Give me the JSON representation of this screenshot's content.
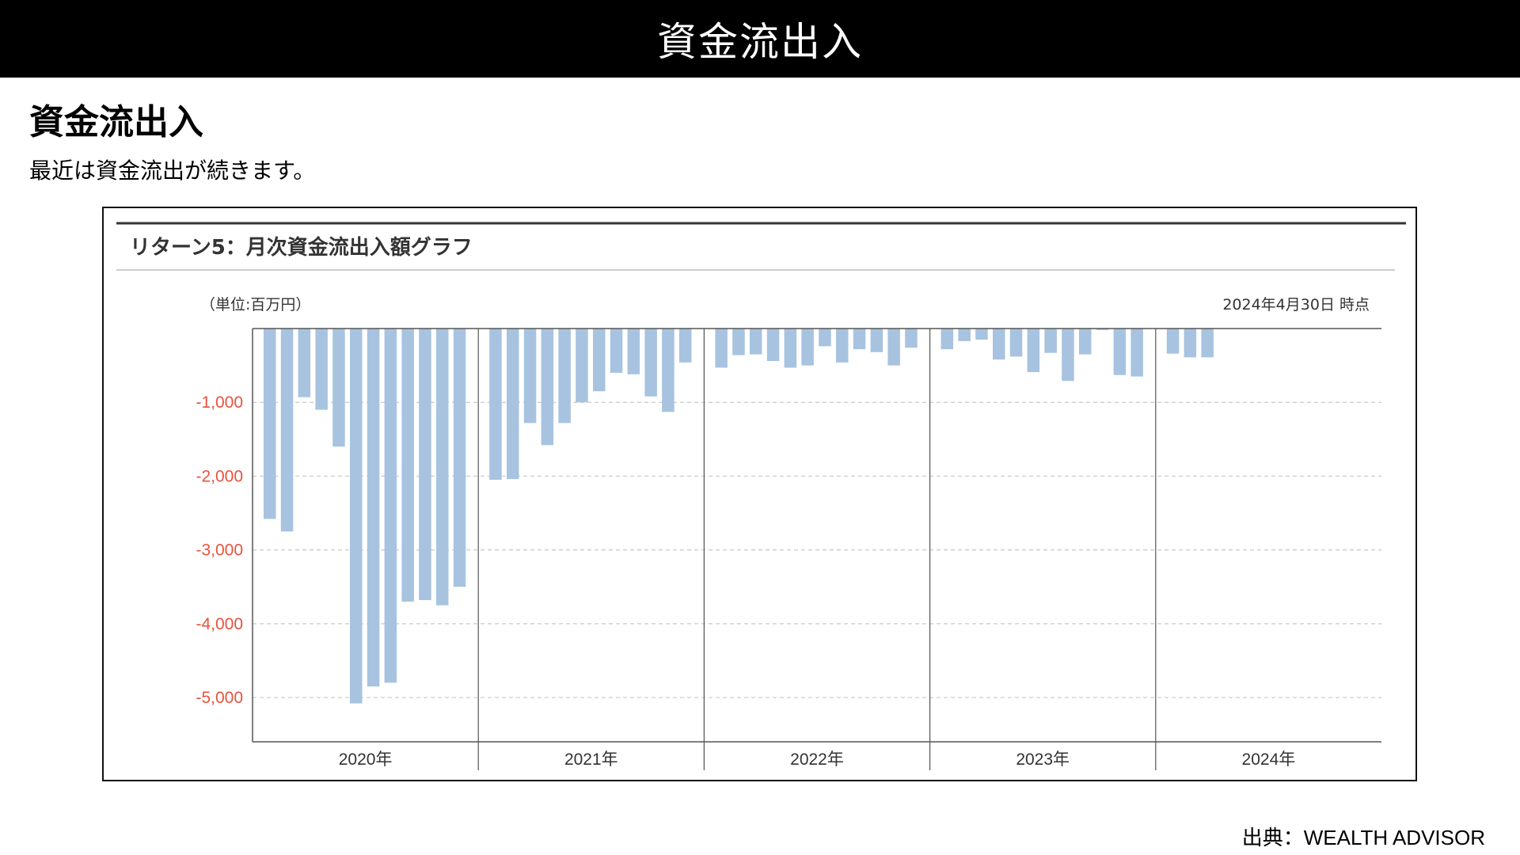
{
  "page": {
    "banner_title": "資金流出入",
    "heading": "資金流出入",
    "subtext": "最近は資金流出が続きます。",
    "source": "出典：WEALTH ADVISOR"
  },
  "chart_data": {
    "type": "bar",
    "title": "リターン5：月次資金流出入額グラフ",
    "unit_label": "（単位:百万円）",
    "as_of": "2024年4月30日 時点",
    "ylim": [
      -5600,
      0
    ],
    "yticks": [
      -1000,
      -2000,
      -3000,
      -4000,
      -5000
    ],
    "ytick_labels": [
      "-1,000",
      "-2,000",
      "-3,000",
      "-4,000",
      "-5,000"
    ],
    "grid": true,
    "bar_color": "#a7c3e0",
    "tick_color": "#e8533f",
    "years": [
      {
        "label": "2020年",
        "values": [
          -2580,
          -2750,
          -930,
          -1100,
          -1600,
          -5080,
          -4850,
          -4800,
          -3700,
          -3680,
          -3750,
          -3500
        ]
      },
      {
        "label": "2021年",
        "values": [
          -2050,
          -2040,
          -1280,
          -1580,
          -1280,
          -1000,
          -850,
          -600,
          -620,
          -920,
          -1130,
          -460
        ]
      },
      {
        "label": "2022年",
        "values": [
          -530,
          -360,
          -350,
          -440,
          -530,
          -500,
          -240,
          -460,
          -280,
          -320,
          -500,
          -260
        ]
      },
      {
        "label": "2023年",
        "values": [
          -280,
          -170,
          -150,
          -420,
          -380,
          -590,
          -330,
          -710,
          -350,
          -20,
          -630,
          -650
        ]
      },
      {
        "label": "2024年",
        "values": [
          -340,
          -390,
          -390
        ]
      }
    ]
  }
}
